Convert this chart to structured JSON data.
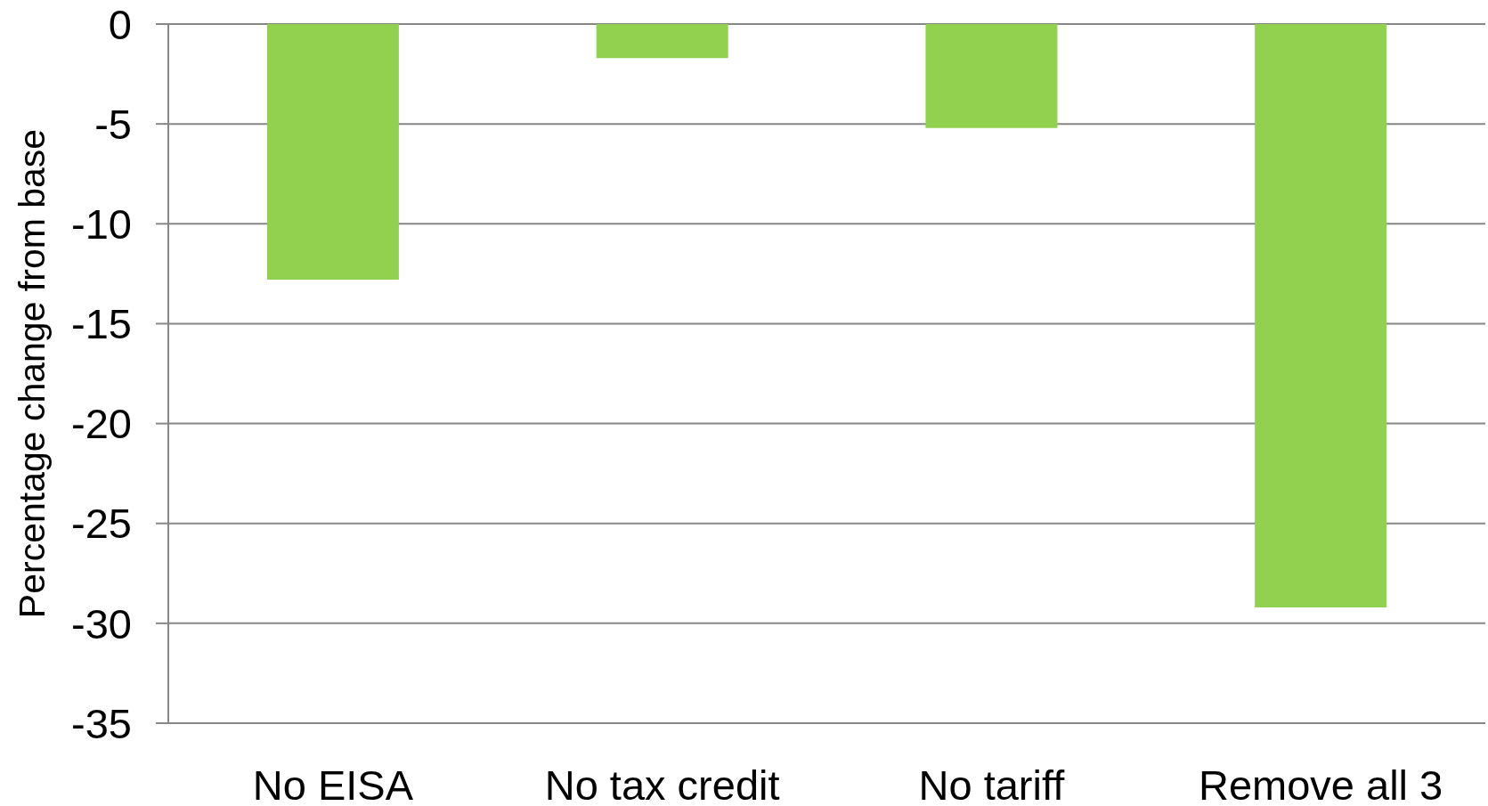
{
  "chart_data": {
    "type": "bar",
    "ylabel": "Percentage change from base",
    "categories": [
      "No EISA",
      "No tax credit",
      "No tariff",
      "Remove all 3"
    ],
    "values": [
      -12.8,
      -1.7,
      -5.2,
      -29.2
    ],
    "color": "#92d050",
    "ylim": [
      -35,
      0
    ],
    "yticks": [
      -35,
      -30,
      -25,
      -20,
      -15,
      -10,
      -5,
      0
    ],
    "grid": "y"
  }
}
